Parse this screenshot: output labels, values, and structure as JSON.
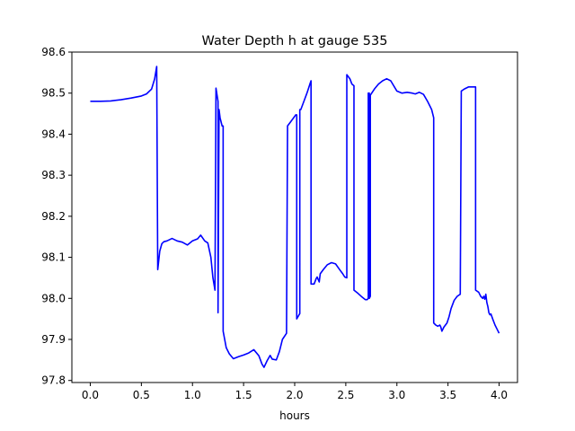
{
  "chart_data": {
    "type": "line",
    "title": "Water Depth h at gauge 535",
    "xlabel": "hours",
    "ylabel": "",
    "xlim": [
      -0.18,
      4.18
    ],
    "ylim": [
      97.795,
      98.6
    ],
    "xticks": [
      0.0,
      0.5,
      1.0,
      1.5,
      2.0,
      2.5,
      3.0,
      3.5,
      4.0
    ],
    "xtick_labels": [
      "0.0",
      "0.5",
      "1.0",
      "1.5",
      "2.0",
      "2.5",
      "3.0",
      "3.5",
      "4.0"
    ],
    "yticks": [
      97.8,
      97.9,
      98.0,
      98.1,
      98.2,
      98.3,
      98.4,
      98.5,
      98.6
    ],
    "ytick_labels": [
      "97.8",
      "97.9",
      "98.0",
      "98.1",
      "98.2",
      "98.3",
      "98.4",
      "98.5",
      "98.6"
    ],
    "grid": false,
    "legend": "none",
    "series": [
      {
        "color": "#0000ff",
        "x": [
          0.0,
          0.1,
          0.2,
          0.3,
          0.4,
          0.5,
          0.55,
          0.6,
          0.63,
          0.65,
          0.66,
          0.66,
          0.68,
          0.7,
          0.72,
          0.75,
          0.8,
          0.85,
          0.9,
          0.95,
          1.0,
          1.05,
          1.08,
          1.12,
          1.15,
          1.18,
          1.2,
          1.22,
          1.23,
          1.23,
          1.25,
          1.25,
          1.26,
          1.26,
          1.27,
          1.29,
          1.3,
          1.3,
          1.33,
          1.36,
          1.4,
          1.45,
          1.5,
          1.55,
          1.6,
          1.65,
          1.68,
          1.7,
          1.73,
          1.76,
          1.78,
          1.82,
          1.85,
          1.88,
          1.92,
          1.93,
          1.93,
          1.96,
          1.99,
          2.01,
          2.02,
          2.02,
          2.05,
          2.05,
          2.06,
          2.09,
          2.12,
          2.15,
          2.16,
          2.16,
          2.19,
          2.21,
          2.22,
          2.24,
          2.25,
          2.28,
          2.32,
          2.36,
          2.4,
          2.44,
          2.47,
          2.49,
          2.51,
          2.51,
          2.54,
          2.56,
          2.58,
          2.58,
          2.62,
          2.66,
          2.69,
          2.71,
          2.72,
          2.72,
          2.73,
          2.73,
          2.74,
          2.74,
          2.78,
          2.82,
          2.86,
          2.9,
          2.94,
          3.0,
          3.05,
          3.1,
          3.15,
          3.18,
          3.22,
          3.26,
          3.3,
          3.34,
          3.36,
          3.36,
          3.38,
          3.4,
          3.42,
          3.43,
          3.44,
          3.46,
          3.49,
          3.51,
          3.53,
          3.56,
          3.59,
          3.62,
          3.63,
          3.63,
          3.66,
          3.7,
          3.74,
          3.77,
          3.77,
          3.8,
          3.82,
          3.84,
          3.85,
          3.86,
          3.87,
          3.88,
          3.89,
          3.9,
          3.91,
          3.92,
          3.94,
          3.96,
          3.98,
          4.0
        ],
        "y": [
          98.48,
          98.48,
          98.481,
          98.484,
          98.488,
          98.493,
          98.498,
          98.51,
          98.535,
          98.565,
          98.07,
          98.07,
          98.115,
          98.133,
          98.138,
          98.14,
          98.146,
          98.14,
          98.137,
          98.13,
          98.14,
          98.145,
          98.154,
          98.14,
          98.135,
          98.1,
          98.05,
          98.02,
          98.512,
          98.512,
          98.48,
          97.965,
          98.46,
          98.46,
          98.44,
          98.42,
          98.42,
          97.92,
          97.88,
          97.865,
          97.853,
          97.858,
          97.862,
          97.867,
          97.875,
          97.86,
          97.84,
          97.832,
          97.848,
          97.861,
          97.852,
          97.85,
          97.87,
          97.9,
          97.915,
          98.42,
          98.42,
          98.43,
          98.44,
          98.447,
          98.447,
          97.95,
          97.963,
          98.46,
          98.46,
          98.48,
          98.5,
          98.523,
          98.53,
          98.035,
          98.035,
          98.048,
          98.052,
          98.04,
          98.06,
          98.07,
          98.082,
          98.087,
          98.084,
          98.07,
          98.06,
          98.052,
          98.05,
          98.545,
          98.535,
          98.522,
          98.518,
          98.02,
          98.012,
          98.003,
          97.997,
          97.997,
          98.0,
          98.5,
          98.5,
          98.0,
          98.005,
          98.495,
          98.51,
          98.522,
          98.53,
          98.535,
          98.53,
          98.505,
          98.5,
          98.502,
          98.5,
          98.498,
          98.502,
          98.497,
          98.48,
          98.46,
          98.44,
          97.94,
          97.935,
          97.932,
          97.935,
          97.93,
          97.92,
          97.93,
          97.94,
          97.955,
          97.975,
          97.995,
          98.005,
          98.01,
          98.505,
          98.505,
          98.51,
          98.515,
          98.515,
          98.515,
          98.02,
          98.015,
          98.005,
          98.0,
          98.005,
          97.998,
          98.01,
          97.99,
          97.98,
          97.965,
          97.96,
          97.962,
          97.948,
          97.935,
          97.925,
          97.915
        ]
      }
    ]
  }
}
